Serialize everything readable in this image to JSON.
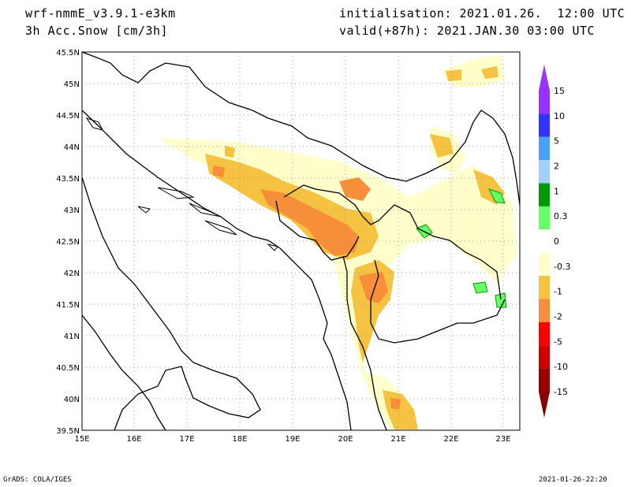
{
  "header": {
    "model": "wrf-nmmE_v3.9.1-e3km",
    "field": "3h Acc.Snow [cm/3h]",
    "init": "initialisation: 2021.01.26.  12:00 UTC",
    "valid": "valid(+87h): 2021.JAN.30 03:00 UTC"
  },
  "footer": {
    "credit": "GrADS: COLA/IGES",
    "timestamp": "2021-01-26-22:20"
  },
  "map": {
    "lat_labels": [
      "45.5N",
      "45N",
      "44.5N",
      "44N",
      "43.5N",
      "43N",
      "42.5N",
      "42N",
      "41.5N",
      "41N",
      "40.5N",
      "40N",
      "39.5N"
    ],
    "lon_labels": [
      "15E",
      "16E",
      "17E",
      "18E",
      "19E",
      "20E",
      "21E",
      "22E",
      "23E"
    ],
    "lat_range": [
      39.5,
      45.5
    ],
    "lon_range": [
      15,
      23.3
    ],
    "grid": "dotted"
  },
  "colorbar": {
    "labels": [
      "15",
      "10",
      "5",
      "2",
      "1",
      "0.3",
      "0",
      "-0.3",
      "-1",
      "-2",
      "-5",
      "-10",
      "-15"
    ],
    "colors": [
      "#9933ff",
      "#3333ff",
      "#4a9fff",
      "#a0d0ff",
      "#009900",
      "#66ff66",
      "#ffffff",
      "#ffffcc",
      "#f5c242",
      "#f78f3a",
      "#ff0000",
      "#cc0000",
      "#990000"
    ],
    "top_arrow_color": "#9933ff",
    "bottom_arrow_color": "#880000"
  }
}
